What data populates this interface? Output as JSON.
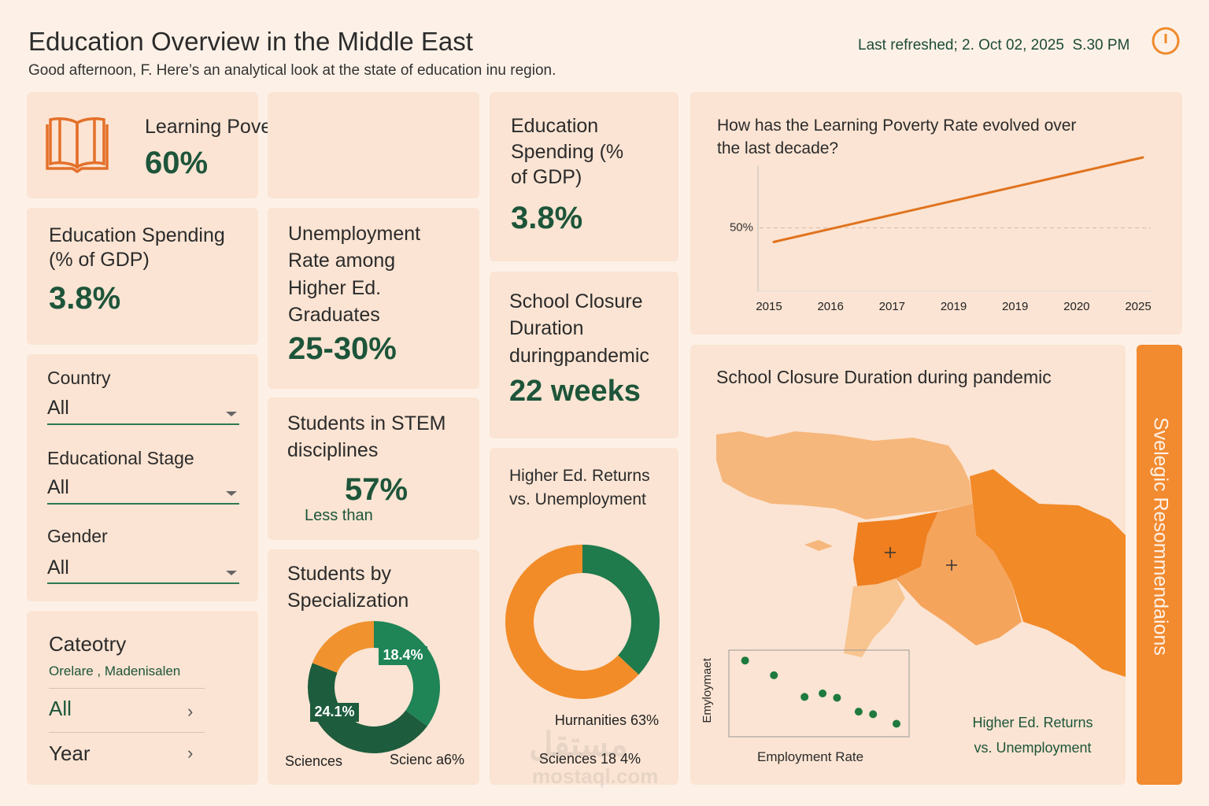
{
  "header": {
    "title": "Education Overview in the Middle East",
    "subtitle": "Good afternoon, F. Here’s an analytical look at the state of education inu region.",
    "last_refreshed": "Last refreshed; 2. Oct 02, 2025  S.30 PM"
  },
  "kpis": [
    {
      "label": "Learning Poverty Rate",
      "value": "60%"
    },
    {
      "label": "Education Spending (% of GDP)",
      "value": "3.8%"
    },
    {
      "label": "Unemployment Rate among Higher Ed. Graduates",
      "value": "25-30%"
    },
    {
      "label": "Students in STEM disciplines",
      "value": "57%",
      "note": "Less than"
    },
    {
      "label": "Education Spending (% of GDP)",
      "value": "3.8%"
    },
    {
      "label": "School Closure Duration duringpandemic",
      "value": "22 weeks"
    }
  ],
  "filters": [
    {
      "label": "Country",
      "value": "All"
    },
    {
      "label": "Educational Stage",
      "value": "All"
    },
    {
      "label": "Gender",
      "value": "All"
    }
  ],
  "category": {
    "title": "Cateotry",
    "subtitle": "Orelare , Madenisalen",
    "options": [
      "All",
      "Year"
    ]
  },
  "map": {
    "title": "School Closure Duration during pandemic"
  },
  "sidebar": {
    "label": "Svelegic Resommendaions"
  },
  "watermark": {
    "arabic": "مستقل",
    "latin": "mostaql.com"
  },
  "chart_data": [
    {
      "type": "line",
      "title": "How has the Learning Poverty Rate evolved over the last decade?",
      "categories": [
        "2015",
        "2016",
        "2017",
        "2019",
        "2019",
        "2020",
        "2025"
      ],
      "series": [
        {
          "color": "#e0731f",
          "values": [
            48,
            50,
            52,
            54,
            56,
            58,
            60
          ]
        }
      ],
      "ylim": [
        41,
        60
      ],
      "yticks": [
        {
          "value": 50,
          "label": "50%"
        }
      ],
      "grid": true
    },
    {
      "type": "donut",
      "title": "Students by Specialization",
      "values": [
        18.4,
        24.1,
        10
      ],
      "value_labels": [
        "18.4%",
        "24.1%",
        null
      ],
      "colors": [
        "#1f8456",
        "#1d5c3d",
        "#f0922e"
      ],
      "captions": [
        "Sciences",
        "Scienc a6%"
      ]
    },
    {
      "type": "donut",
      "title": "Higher Ed. Returns vs. Unemployment",
      "values": [
        37,
        63
      ],
      "colors": [
        "#1f7a4c",
        "#f28c28"
      ],
      "captions": [
        "Hurnanities 63%",
        "Sciences 18 4%"
      ]
    },
    {
      "type": "scatter",
      "x_label": "Employment Rate",
      "y_label": "Emyloymaet",
      "caption": "Higher Ed. Returns vs. Unemployment",
      "xlim": [
        0,
        100
      ],
      "ylim": [
        0,
        100
      ],
      "x": [
        9,
        25,
        42,
        52,
        60,
        72,
        80,
        93
      ],
      "series": [
        {
          "color": "#1e7a3e",
          "values": [
            88,
            71,
            46,
            50,
            45,
            29,
            26,
            15
          ]
        }
      ]
    }
  ]
}
